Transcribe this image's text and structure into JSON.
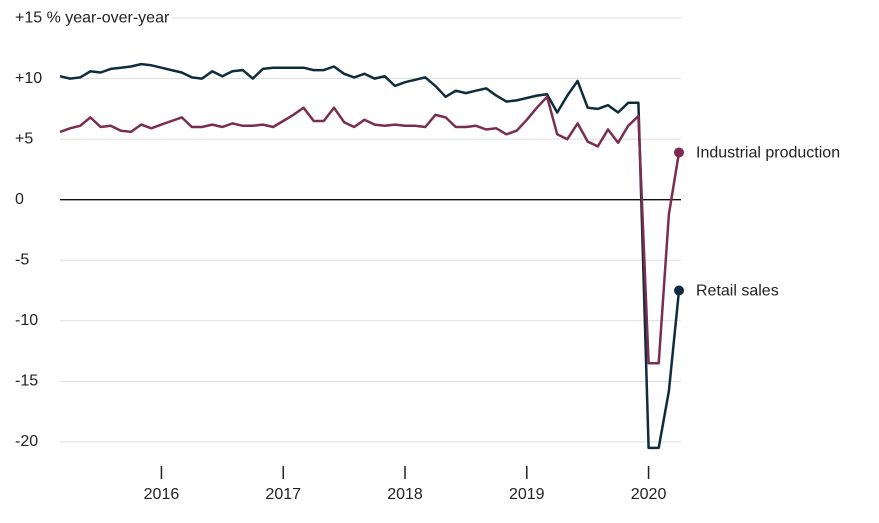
{
  "chart_data": {
    "type": "line",
    "x": [
      2015.167,
      2015.25,
      2015.333,
      2015.417,
      2015.5,
      2015.583,
      2015.667,
      2015.75,
      2015.833,
      2015.917,
      2016,
      2016.083,
      2016.167,
      2016.25,
      2016.333,
      2016.417,
      2016.5,
      2016.583,
      2016.667,
      2016.75,
      2016.833,
      2016.917,
      2017,
      2017.083,
      2017.167,
      2017.25,
      2017.333,
      2017.417,
      2017.5,
      2017.583,
      2017.667,
      2017.75,
      2017.833,
      2017.917,
      2018,
      2018.083,
      2018.167,
      2018.25,
      2018.333,
      2018.417,
      2018.5,
      2018.583,
      2018.667,
      2018.75,
      2018.833,
      2018.917,
      2019,
      2019.083,
      2019.167,
      2019.25,
      2019.333,
      2019.417,
      2019.5,
      2019.583,
      2019.667,
      2019.75,
      2019.833,
      2019.917,
      2020,
      2020.083,
      2020.167,
      2020.25
    ],
    "series": [
      {
        "name": "Retail sales",
        "color": "#0f2c3d",
        "values": [
          10.2,
          10.0,
          10.1,
          10.6,
          10.5,
          10.8,
          10.9,
          11.0,
          11.2,
          11.1,
          10.9,
          10.7,
          10.5,
          10.1,
          10.0,
          10.6,
          10.2,
          10.6,
          10.7,
          10.0,
          10.8,
          10.9,
          10.9,
          10.9,
          10.9,
          10.7,
          10.7,
          11.0,
          10.4,
          10.1,
          10.4,
          10.0,
          10.2,
          9.4,
          9.7,
          9.9,
          10.1,
          9.4,
          8.5,
          9.0,
          8.8,
          9.0,
          9.2,
          8.6,
          8.1,
          8.2,
          8.4,
          8.6,
          8.7,
          7.2,
          8.6,
          9.8,
          7.6,
          7.5,
          7.8,
          7.2,
          8.0,
          8.0,
          -20.5,
          -20.5,
          -15.8,
          -7.5
        ]
      },
      {
        "name": "Industrial production",
        "color": "#7b2d50",
        "values": [
          5.6,
          5.9,
          6.1,
          6.8,
          6.0,
          6.1,
          5.7,
          5.6,
          6.2,
          5.9,
          6.2,
          6.5,
          6.8,
          6.0,
          6.0,
          6.2,
          6.0,
          6.3,
          6.1,
          6.1,
          6.2,
          6.0,
          6.5,
          7.0,
          7.6,
          6.5,
          6.5,
          7.6,
          6.4,
          6.0,
          6.6,
          6.2,
          6.1,
          6.2,
          6.1,
          6.1,
          6.0,
          7.0,
          6.8,
          6.0,
          6.0,
          6.1,
          5.8,
          5.9,
          5.4,
          5.7,
          6.6,
          7.6,
          8.5,
          5.4,
          5.0,
          6.3,
          4.8,
          4.4,
          5.8,
          4.7,
          6.1,
          6.9,
          -13.5,
          -13.5,
          -1.2,
          3.9
        ]
      }
    ],
    "xlim": [
      2015.167,
      2020.25
    ],
    "xticks": [
      2016,
      2017,
      2018,
      2019,
      2020
    ],
    "ylim": [
      -21,
      15.5
    ],
    "yticks": [
      {
        "value": 15,
        "label": "+15 % year-over-year"
      },
      {
        "value": 10,
        "label": "+10"
      },
      {
        "value": 5,
        "label": "+5"
      },
      0,
      -5,
      -10,
      -15,
      -20
    ],
    "grid": true
  }
}
